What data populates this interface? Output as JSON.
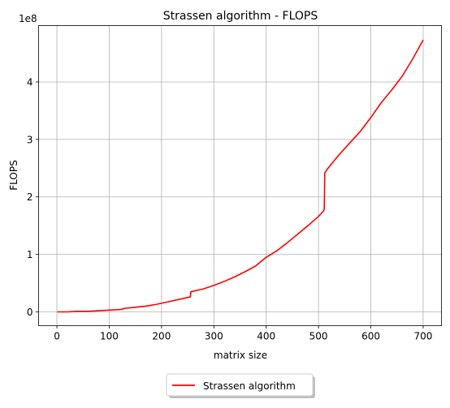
{
  "chart_data": {
    "type": "line",
    "title": "Strassen algorithm - FLOPS",
    "xlabel": "matrix size",
    "ylabel": "FLOPS",
    "y_offset_label": "1e8",
    "xlim": [
      -35,
      735
    ],
    "ylim": [
      -0.24,
      4.98
    ],
    "y_unit_multiplier": 100000000,
    "x_ticks": [
      0,
      100,
      200,
      300,
      400,
      500,
      600,
      700
    ],
    "x_tick_labels": [
      "0",
      "100",
      "200",
      "300",
      "400",
      "500",
      "600",
      "700"
    ],
    "y_ticks": [
      0,
      1,
      2,
      3,
      4
    ],
    "y_tick_labels": [
      "0",
      "1",
      "2",
      "3",
      "4"
    ],
    "grid": true,
    "legend_position": "bottom-center",
    "series": [
      {
        "name": "Strassen algorithm",
        "color": "#ff0000",
        "x": [
          1,
          20,
          40,
          60,
          80,
          100,
          120,
          127,
          128,
          150,
          170,
          190,
          200,
          220,
          240,
          255,
          256,
          280,
          300,
          320,
          340,
          360,
          380,
          400,
          420,
          440,
          460,
          480,
          500,
          510,
          511,
          512,
          520,
          540,
          560,
          580,
          600,
          620,
          640,
          660,
          680,
          700
        ],
        "y": [
          0.0,
          0.0,
          0.01,
          0.01,
          0.02,
          0.03,
          0.04,
          0.05,
          0.06,
          0.08,
          0.1,
          0.13,
          0.15,
          0.19,
          0.23,
          0.26,
          0.35,
          0.4,
          0.46,
          0.53,
          0.61,
          0.7,
          0.8,
          0.95,
          1.06,
          1.2,
          1.35,
          1.5,
          1.66,
          1.76,
          1.8,
          2.42,
          2.52,
          2.74,
          2.94,
          3.14,
          3.38,
          3.64,
          3.86,
          4.1,
          4.4,
          4.73
        ]
      }
    ]
  }
}
